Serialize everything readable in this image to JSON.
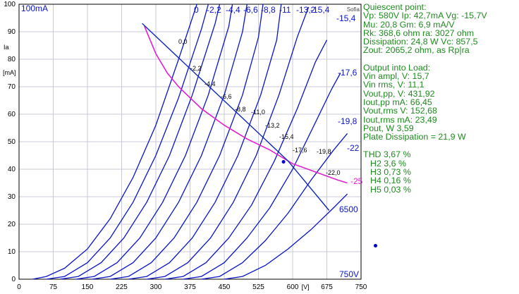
{
  "chart_data": {
    "type": "line",
    "title": "",
    "ylabel": "Ia [mA]",
    "xlabel": "[V]",
    "corner_label": "Sofia",
    "y_top_label": "100mA",
    "x_right_label": "750V",
    "xlim": [
      0,
      750
    ],
    "ylim": [
      0,
      100
    ],
    "x_ticks": [
      0,
      75,
      150,
      225,
      300,
      375,
      450,
      525,
      600,
      675,
      750
    ],
    "y_ticks": [
      0,
      10,
      20,
      30,
      40,
      50,
      60,
      70,
      80,
      90,
      100
    ],
    "grid": true,
    "curve_family_labels": [
      "0",
      "-2,2",
      "-4,4",
      "-6,6",
      "-8,8",
      "-11",
      "-13,2",
      "-15,4",
      "-17,6",
      "-19,8",
      "-22",
      "-25"
    ],
    "plate_curves": [
      {
        "grid_v": 0,
        "label_on_curve": "0,0",
        "points": [
          [
            30,
            0
          ],
          [
            60,
            1
          ],
          [
            100,
            4
          ],
          [
            150,
            11
          ],
          [
            200,
            22
          ],
          [
            250,
            37
          ],
          [
            300,
            56
          ],
          [
            350,
            80
          ],
          [
            390,
            100
          ]
        ]
      },
      {
        "grid_v": -2.2,
        "label_on_curve": "-2,2",
        "points": [
          [
            60,
            0
          ],
          [
            100,
            1
          ],
          [
            150,
            6
          ],
          [
            200,
            15
          ],
          [
            250,
            28
          ],
          [
            300,
            45
          ],
          [
            350,
            66
          ],
          [
            400,
            91
          ],
          [
            415,
            100
          ]
        ]
      },
      {
        "grid_v": -4.4,
        "label_on_curve": "-4,4",
        "points": [
          [
            90,
            0
          ],
          [
            130,
            1
          ],
          [
            180,
            6
          ],
          [
            230,
            15
          ],
          [
            280,
            28
          ],
          [
            330,
            45
          ],
          [
            380,
            67
          ],
          [
            430,
            93
          ],
          [
            440,
            100
          ]
        ]
      },
      {
        "grid_v": -6.6,
        "label_on_curve": "-6,6",
        "points": [
          [
            125,
            0
          ],
          [
            165,
            1
          ],
          [
            215,
            6
          ],
          [
            265,
            15
          ],
          [
            315,
            28
          ],
          [
            365,
            45
          ],
          [
            415,
            67
          ],
          [
            460,
            92
          ],
          [
            468,
            100
          ]
        ]
      },
      {
        "grid_v": -8.8,
        "label_on_curve": "-8,8",
        "points": [
          [
            160,
            0
          ],
          [
            200,
            1
          ],
          [
            250,
            6
          ],
          [
            300,
            15
          ],
          [
            350,
            28
          ],
          [
            400,
            45
          ],
          [
            450,
            67
          ],
          [
            490,
            90
          ],
          [
            500,
            100
          ]
        ]
      },
      {
        "grid_v": -11,
        "label_on_curve": "-11,0",
        "points": [
          [
            200,
            0
          ],
          [
            240,
            1
          ],
          [
            290,
            6
          ],
          [
            340,
            15
          ],
          [
            390,
            28
          ],
          [
            440,
            45
          ],
          [
            490,
            67
          ],
          [
            525,
            88
          ],
          [
            535,
            100
          ]
        ]
      },
      {
        "grid_v": -13.2,
        "label_on_curve": "-13,2",
        "points": [
          [
            240,
            0
          ],
          [
            280,
            1
          ],
          [
            330,
            6
          ],
          [
            380,
            15
          ],
          [
            430,
            28
          ],
          [
            480,
            45
          ],
          [
            530,
            67
          ],
          [
            565,
            87
          ],
          [
            575,
            100
          ]
        ]
      },
      {
        "grid_v": -15.4,
        "label_on_curve": "-15,4",
        "points": [
          [
            280,
            0
          ],
          [
            320,
            1
          ],
          [
            370,
            6
          ],
          [
            420,
            15
          ],
          [
            470,
            28
          ],
          [
            520,
            45
          ],
          [
            570,
            67
          ],
          [
            610,
            88
          ],
          [
            635,
            99
          ]
        ]
      },
      {
        "grid_v": -17.6,
        "label_on_curve": "-17,6",
        "points": [
          [
            320,
            0
          ],
          [
            360,
            1
          ],
          [
            410,
            6
          ],
          [
            460,
            15
          ],
          [
            510,
            27
          ],
          [
            560,
            43
          ],
          [
            610,
            62
          ],
          [
            650,
            79
          ],
          [
            675,
            87
          ]
        ]
      },
      {
        "grid_v": -19.8,
        "label_on_curve": "-19,8",
        "points": [
          [
            360,
            0
          ],
          [
            400,
            1
          ],
          [
            450,
            6
          ],
          [
            500,
            15
          ],
          [
            550,
            26
          ],
          [
            600,
            40
          ],
          [
            650,
            57
          ],
          [
            685,
            69
          ],
          [
            705,
            75
          ]
        ]
      },
      {
        "grid_v": -22,
        "label_on_curve": "-22,0",
        "points": [
          [
            400,
            0
          ],
          [
            440,
            1
          ],
          [
            490,
            6
          ],
          [
            540,
            14
          ],
          [
            590,
            24
          ],
          [
            640,
            36
          ],
          [
            690,
            47
          ],
          [
            720,
            53
          ]
        ]
      },
      {
        "grid_v": -25,
        "label_on_curve": "",
        "points": [
          [
            450,
            0
          ],
          [
            490,
            1
          ],
          [
            540,
            5
          ],
          [
            590,
            11
          ],
          [
            640,
            18
          ],
          [
            690,
            26
          ],
          [
            720,
            31
          ]
        ]
      }
    ],
    "load_line": {
      "label": "6500",
      "points": [
        [
          270,
          93
        ],
        [
          590,
          43
        ],
        [
          680,
          25
        ]
      ]
    },
    "dissipation_curve": {
      "points": [
        [
          275,
          92
        ],
        [
          300,
          82
        ],
        [
          325,
          75
        ],
        [
          350,
          70
        ],
        [
          400,
          62
        ],
        [
          450,
          56
        ],
        [
          500,
          51
        ],
        [
          550,
          47
        ],
        [
          600,
          42
        ],
        [
          650,
          39
        ],
        [
          700,
          36
        ],
        [
          720,
          35
        ]
      ]
    },
    "quiescent_point": {
      "x": 580,
      "y": 42.7
    }
  },
  "info": {
    "quiescent_header": "Quiescent point:",
    "q1": "Vp: 580V  Ip: 42,7mA  Vg: -15,7V",
    "q2": "Mu: 20,8 Gm: 6,9 mA/V",
    "q3": "Rk: 368,6 ohm ra: 3027 ohm",
    "q4": "Dissipation: 24,8 W Vc: 857,5",
    "q5": "Zout: 2065,2 ohm, as Rp|ra",
    "output_header": "Output into Load:",
    "o1": "Vin ampl, V: 15,7",
    "o2": "Vin rms,  V: 11,1",
    "o3": "Vout,pp,   V: 431,92",
    "o4": "Iout,pp   mA: 66,45",
    "o5": "Vout,rms  V: 152,68",
    "o6": "Iout,rms  mA: 23,49",
    "o7": "Pout, W      3,59",
    "o8": "Plate Dissipation = 21,9 W",
    "thd": "THD 3,67 %",
    "h2": "H2 3,6 %",
    "h3": "H3 0,73 %",
    "h4": "H4 0,16 %",
    "h5": "H5 0,03 %"
  },
  "colors": {
    "curves": "#0a14c8",
    "dissipation": "#e020d0",
    "load_line": "#1028b8",
    "grid": "#c8c8d8",
    "axis": "#000000",
    "info_text": "#1f8a1f",
    "marker": "#0000cc"
  }
}
